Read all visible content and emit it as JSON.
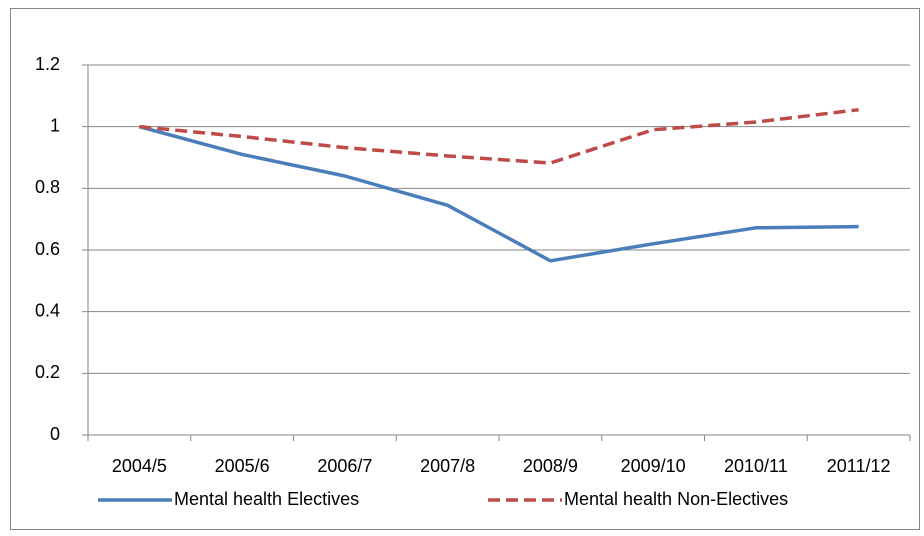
{
  "chart_data": {
    "type": "line",
    "categories": [
      "2004/5",
      "2005/6",
      "2006/7",
      "2007/8",
      "2008/9",
      "2009/10",
      "2010/11",
      "2011/12"
    ],
    "series": [
      {
        "name": "Mental health Electives",
        "color": "#4a7ebb",
        "dash": false,
        "values": [
          1.0,
          0.91,
          0.84,
          0.745,
          0.565,
          0.62,
          0.672,
          0.676
        ]
      },
      {
        "name": "Mental health Non-Electives",
        "color": "#be4b48",
        "dash": true,
        "values": [
          1.0,
          0.968,
          0.932,
          0.905,
          0.882,
          0.99,
          1.015,
          1.055
        ]
      }
    ],
    "ylim": [
      0,
      1.2
    ],
    "yticks": [
      0,
      0.2,
      0.4,
      0.6,
      0.8,
      1,
      1.2
    ],
    "grid": true,
    "legend": "bottom"
  }
}
